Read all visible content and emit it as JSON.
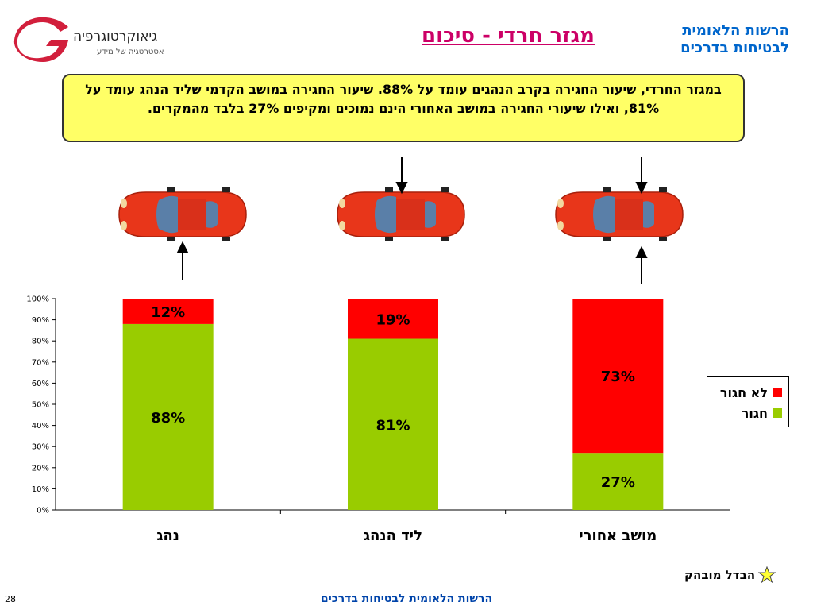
{
  "header": {
    "org_line1": "הרשות הלאומית",
    "org_line2": "לבטיחות בדרכים",
    "title": "מגזר חרדי - סיכום",
    "logo_text": "גיאוקרטוגרפיה",
    "logo_sub": "אסטרטגיה של מידע"
  },
  "callout": {
    "text": "במגזר החרדי, שיעור החגירה בקרב הנהגים עומד על 88%. שיעור החגירה במושב הקדמי שליד הנהג עומד על 81%, ואילו שיעורי החגירה במושב האחורי הינם נמוכים ומקיפים 27% בלבד מהמקרים."
  },
  "chart_data": {
    "type": "bar",
    "stacked": true,
    "categories": [
      "נהג",
      "ליד הנהג",
      "מושב אחורי"
    ],
    "series": [
      {
        "name": "חגור",
        "values": [
          88,
          81,
          27
        ],
        "color": "#99cc00",
        "labels": [
          "88%",
          "81%",
          "27%"
        ]
      },
      {
        "name": "לא חגור",
        "values": [
          12,
          19,
          73
        ],
        "color": "#ff0000",
        "labels": [
          "12%",
          "19%",
          "73%"
        ]
      }
    ],
    "y_ticks": [
      "0%",
      "10%",
      "20%",
      "30%",
      "40%",
      "50%",
      "60%",
      "70%",
      "80%",
      "90%",
      "100%"
    ],
    "ylim": [
      0,
      100
    ],
    "grid": false,
    "legend_position": "right"
  },
  "legend": {
    "not_belted": "לא חגור",
    "belted": "חגור"
  },
  "footnote": {
    "text": "הבדל מובהק"
  },
  "footer": {
    "text": "הרשות הלאומית לבטיחות בדרכים"
  },
  "page_number": "28",
  "colors": {
    "belted": "#99cc00",
    "not_belted": "#ff0000",
    "title": "#cc0066",
    "org": "#0066cc",
    "callout_bg": "#ffff66"
  }
}
